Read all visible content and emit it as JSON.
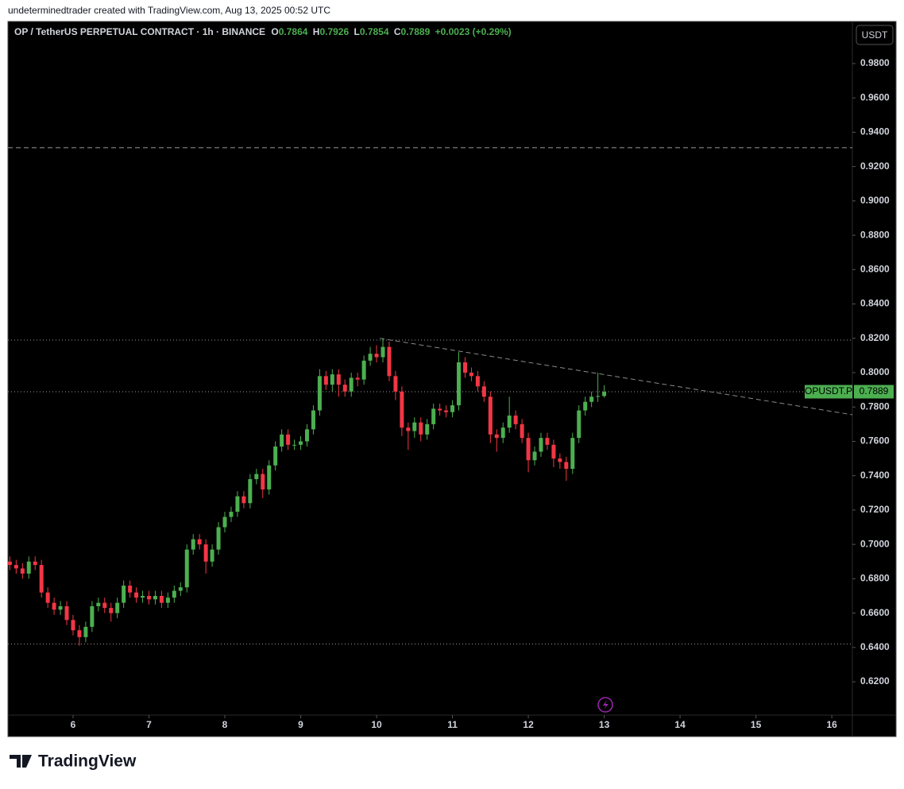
{
  "header": {
    "credit": "undeterminedtrader created with TradingView.com, Aug 13, 2025 00:52 UTC",
    "symbol": "OP / TetherUS PERPETUAL CONTRACT · 1h · BINANCE",
    "ohlc_labels": [
      "O",
      "H",
      "L",
      "C"
    ],
    "change": "+0.0023 (+0.29%)",
    "currency": "USDT",
    "ticker": "OPUSDT.P",
    "brand": "TradingView"
  },
  "chart_data": {
    "type": "candlestick",
    "x": [
      4,
      6,
      8,
      10,
      12,
      14,
      16,
      18,
      20,
      22,
      24,
      26,
      28,
      30,
      32,
      34,
      36,
      38,
      40,
      42,
      44,
      46,
      48,
      50,
      52,
      54,
      56,
      58,
      60,
      62,
      64,
      66,
      68,
      70,
      72,
      74,
      76,
      78,
      80,
      82,
      84,
      86,
      88,
      90,
      92,
      94,
      96,
      98,
      100,
      102,
      104,
      106,
      108,
      110,
      112,
      114,
      116,
      118,
      120,
      122,
      124,
      126,
      128,
      130,
      132,
      134,
      136,
      138,
      140,
      142,
      144,
      146,
      148,
      150,
      152,
      154,
      156,
      158,
      160,
      162,
      164,
      166,
      168,
      170,
      172,
      174,
      176,
      178,
      180,
      182,
      184,
      186,
      188,
      190,
      192
    ],
    "open": [
      0.69,
      0.688,
      0.686,
      0.683,
      0.69,
      0.688,
      0.672,
      0.666,
      0.662,
      0.664,
      0.656,
      0.65,
      0.646,
      0.652,
      0.664,
      0.666,
      0.663,
      0.66,
      0.666,
      0.676,
      0.672,
      0.669,
      0.67,
      0.668,
      0.67,
      0.666,
      0.669,
      0.673,
      0.675,
      0.697,
      0.703,
      0.7,
      0.69,
      0.697,
      0.71,
      0.716,
      0.719,
      0.728,
      0.724,
      0.738,
      0.741,
      0.732,
      0.746,
      0.757,
      0.764,
      0.758,
      0.758,
      0.76,
      0.767,
      0.778,
      0.798,
      0.793,
      0.799,
      0.793,
      0.789,
      0.797,
      0.796,
      0.807,
      0.811,
      0.809,
      0.815,
      0.798,
      0.789,
      0.768,
      0.766,
      0.771,
      0.764,
      0.77,
      0.779,
      0.778,
      0.777,
      0.781,
      0.806,
      0.8,
      0.798,
      0.792,
      0.786,
      0.764,
      0.762,
      0.768,
      0.775,
      0.77,
      0.762,
      0.749,
      0.754,
      0.762,
      0.758,
      0.75,
      0.748,
      0.744,
      0.762,
      0.778,
      0.783,
      0.786,
      0.7864
    ],
    "high": [
      0.693,
      0.691,
      0.689,
      0.693,
      0.693,
      0.691,
      0.675,
      0.669,
      0.667,
      0.667,
      0.659,
      0.653,
      0.655,
      0.667,
      0.669,
      0.669,
      0.666,
      0.669,
      0.679,
      0.679,
      0.675,
      0.673,
      0.673,
      0.673,
      0.673,
      0.672,
      0.676,
      0.678,
      0.7,
      0.706,
      0.706,
      0.703,
      0.7,
      0.713,
      0.719,
      0.722,
      0.731,
      0.731,
      0.741,
      0.744,
      0.744,
      0.749,
      0.76,
      0.767,
      0.767,
      0.761,
      0.763,
      0.77,
      0.781,
      0.802,
      0.801,
      0.802,
      0.802,
      0.796,
      0.8,
      0.8,
      0.81,
      0.815,
      0.816,
      0.82,
      0.818,
      0.801,
      0.792,
      0.771,
      0.774,
      0.774,
      0.773,
      0.782,
      0.782,
      0.781,
      0.784,
      0.812,
      0.809,
      0.803,
      0.801,
      0.795,
      0.789,
      0.767,
      0.771,
      0.786,
      0.778,
      0.773,
      0.765,
      0.757,
      0.765,
      0.765,
      0.761,
      0.753,
      0.751,
      0.765,
      0.781,
      0.786,
      0.789,
      0.8,
      0.7926
    ],
    "low": [
      0.685,
      0.683,
      0.68,
      0.68,
      0.685,
      0.669,
      0.663,
      0.659,
      0.659,
      0.653,
      0.647,
      0.641,
      0.643,
      0.649,
      0.661,
      0.66,
      0.655,
      0.657,
      0.663,
      0.669,
      0.666,
      0.666,
      0.665,
      0.665,
      0.663,
      0.663,
      0.666,
      0.67,
      0.672,
      0.694,
      0.697,
      0.683,
      0.687,
      0.694,
      0.707,
      0.713,
      0.716,
      0.721,
      0.721,
      0.735,
      0.727,
      0.729,
      0.743,
      0.754,
      0.755,
      0.755,
      0.755,
      0.757,
      0.764,
      0.775,
      0.79,
      0.789,
      0.786,
      0.786,
      0.786,
      0.792,
      0.793,
      0.804,
      0.806,
      0.806,
      0.795,
      0.784,
      0.763,
      0.755,
      0.762,
      0.76,
      0.761,
      0.767,
      0.775,
      0.774,
      0.774,
      0.778,
      0.797,
      0.795,
      0.789,
      0.783,
      0.759,
      0.754,
      0.759,
      0.765,
      0.767,
      0.759,
      0.742,
      0.746,
      0.751,
      0.755,
      0.745,
      0.744,
      0.737,
      0.741,
      0.759,
      0.775,
      0.78,
      0.783,
      0.7854
    ],
    "close": [
      0.688,
      0.686,
      0.683,
      0.69,
      0.688,
      0.672,
      0.666,
      0.662,
      0.664,
      0.656,
      0.65,
      0.646,
      0.652,
      0.664,
      0.666,
      0.663,
      0.66,
      0.666,
      0.676,
      0.672,
      0.669,
      0.67,
      0.668,
      0.67,
      0.666,
      0.669,
      0.673,
      0.675,
      0.697,
      0.703,
      0.7,
      0.69,
      0.697,
      0.71,
      0.716,
      0.719,
      0.728,
      0.724,
      0.738,
      0.741,
      0.732,
      0.746,
      0.757,
      0.764,
      0.758,
      0.758,
      0.76,
      0.767,
      0.778,
      0.798,
      0.793,
      0.799,
      0.793,
      0.789,
      0.797,
      0.796,
      0.807,
      0.811,
      0.809,
      0.815,
      0.798,
      0.789,
      0.768,
      0.766,
      0.771,
      0.764,
      0.77,
      0.779,
      0.778,
      0.777,
      0.781,
      0.806,
      0.8,
      0.798,
      0.792,
      0.786,
      0.764,
      0.762,
      0.768,
      0.775,
      0.77,
      0.762,
      0.749,
      0.754,
      0.762,
      0.758,
      0.75,
      0.748,
      0.744,
      0.762,
      0.778,
      0.783,
      0.786,
      0.7864,
      0.7889
    ],
    "up_color": "#4caf50",
    "down_color": "#f23645",
    "xlim": [
      3.4,
      270.5
    ],
    "xticks": [
      {
        "value": 24,
        "label": "6"
      },
      {
        "value": 48,
        "label": "7"
      },
      {
        "value": 72,
        "label": "8"
      },
      {
        "value": 96,
        "label": "9"
      },
      {
        "value": 120,
        "label": "10"
      },
      {
        "value": 144,
        "label": "11"
      },
      {
        "value": 168,
        "label": "12"
      },
      {
        "value": 192,
        "label": "13"
      },
      {
        "value": 216,
        "label": "14"
      },
      {
        "value": 240,
        "label": "15"
      },
      {
        "value": 264,
        "label": "16"
      }
    ],
    "ylim": [
      0.6006,
      1.0045
    ],
    "yticks": [
      {
        "value": 0.62,
        "label": "0.6200"
      },
      {
        "value": 0.64,
        "label": "0.6400"
      },
      {
        "value": 0.66,
        "label": "0.6600"
      },
      {
        "value": 0.68,
        "label": "0.6800"
      },
      {
        "value": 0.7,
        "label": "0.7000"
      },
      {
        "value": 0.72,
        "label": "0.7200"
      },
      {
        "value": 0.74,
        "label": "0.7400"
      },
      {
        "value": 0.76,
        "label": "0.7600"
      },
      {
        "value": 0.78,
        "label": "0.7800"
      },
      {
        "value": 0.8,
        "label": "0.8000"
      },
      {
        "value": 0.82,
        "label": "0.8200"
      },
      {
        "value": 0.84,
        "label": "0.8400"
      },
      {
        "value": 0.86,
        "label": "0.8600"
      },
      {
        "value": 0.88,
        "label": "0.8800"
      },
      {
        "value": 0.9,
        "label": "0.9000"
      },
      {
        "value": 0.92,
        "label": "0.9200"
      },
      {
        "value": 0.94,
        "label": "0.9400"
      },
      {
        "value": 0.96,
        "label": "0.9600"
      },
      {
        "value": 0.98,
        "label": "0.9800"
      }
    ],
    "hlines": [
      {
        "value": 0.931,
        "style": "dashed"
      },
      {
        "value": 0.819,
        "style": "dotted"
      },
      {
        "value": 0.7889,
        "style": "dotted"
      },
      {
        "value": 0.642,
        "style": "dotted"
      }
    ],
    "trendline": {
      "x": [
        121,
        270.5
      ],
      "y": [
        0.82,
        0.7755
      ]
    }
  }
}
